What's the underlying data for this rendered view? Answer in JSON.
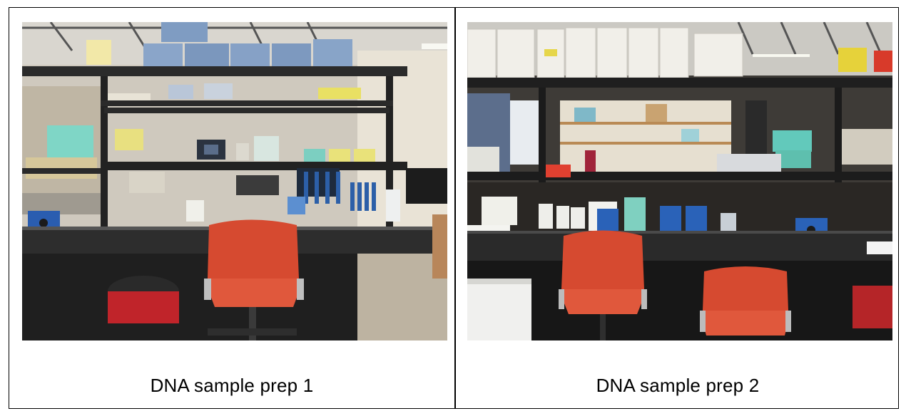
{
  "panels": [
    {
      "caption": "DNA sample prep 1"
    },
    {
      "caption": "DNA sample prep 2"
    }
  ]
}
